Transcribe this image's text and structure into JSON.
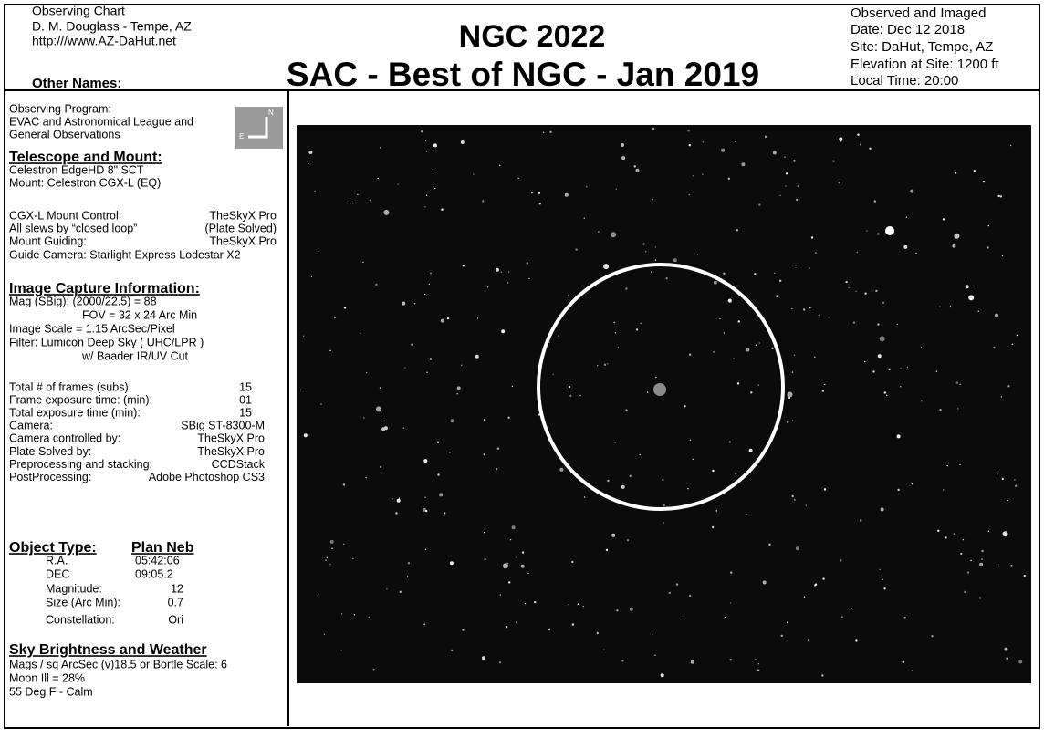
{
  "header": {
    "left_lines": [
      "Observing Chart",
      "D. M. Douglass - Tempe, AZ",
      "http:///www.AZ-DaHut.net"
    ],
    "other_names": "Other Names:",
    "title": "NGC 2022",
    "subtitle": "SAC - Best of NGC - Jan 2019",
    "right_lines": [
      "Observed and Imaged",
      "Date:  Dec 12 2018",
      "Site:   DaHut, Tempe, AZ",
      "Elevation at Site:   1200 ft",
      "Local Time: 20:00"
    ]
  },
  "compass": {
    "north": "N",
    "east": "E"
  },
  "program": [
    "Observing Program:",
    "EVAC and Astronomical League and",
    "General Observations"
  ],
  "telescope": {
    "heading": "Telescope and Mount:",
    "lines": [
      "Celestron EdgeHD 8\" SCT",
      "Mount: Celestron CGX-L (EQ)"
    ],
    "rows": [
      [
        "CGX-L Mount Control:",
        "TheSkyX Pro"
      ],
      [
        "All slews by “closed loop”",
        "(Plate Solved)"
      ],
      [
        "Mount Guiding:",
        "TheSkyX Pro"
      ]
    ],
    "guide_camera": "Guide Camera: Starlight Express Lodestar X2"
  },
  "capture": {
    "heading": "Image Capture Information:",
    "lines": [
      "Mag (SBig): (2000/22.5) = 88",
      "FOV = 32 x 24  Arc Min",
      "Image Scale = 1.15 ArcSec/Pixel",
      "Filter:    Lumicon Deep Sky ( UHC/LPR )",
      "w/ Baader IR/UV Cut"
    ]
  },
  "frames": [
    [
      "Total # of frames (subs):",
      "15"
    ],
    [
      "Frame exposure time: (min):",
      "01"
    ],
    [
      "Total exposure time (min):",
      "15"
    ],
    [
      "Camera:",
      "SBig ST-8300-M"
    ],
    [
      "Camera controlled by:",
      "TheSkyX Pro"
    ],
    [
      "Plate Solved by:",
      "TheSkyX Pro"
    ],
    [
      "Preprocessing and stacking:",
      "CCDStack"
    ],
    [
      "PostProcessing:",
      "Adobe Photoshop CS3"
    ]
  ],
  "object": {
    "heading": "Object Type:",
    "type": "Plan Neb",
    "rows": [
      [
        "R.A.",
        "05:42:06"
      ],
      [
        "DEC",
        "09:05.2"
      ],
      [
        "Magnitude:",
        "12"
      ],
      [
        "Size (Arc Min):",
        "0.7"
      ],
      [
        "Constellation:",
        "Ori"
      ]
    ]
  },
  "sky": {
    "heading": "Sky Brightness and Weather",
    "lines": [
      "Mags / sq ArcSec (v)18.5 or Bortle Scale: 6",
      "Moon Ill = 28%",
      "55 Deg F  -  Calm"
    ]
  }
}
